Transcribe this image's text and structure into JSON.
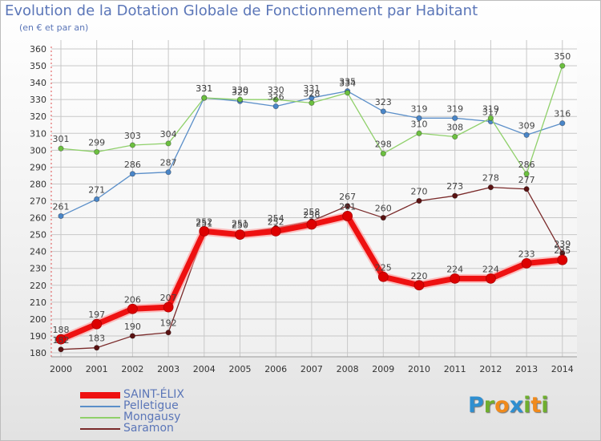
{
  "title": "Evolution de la Dotation Globale de Fonctionnement par Habitant",
  "subtitle": "(en € et par an)",
  "logo": {
    "letters": [
      "P",
      "r",
      "o",
      "x",
      "i",
      "t",
      "i"
    ],
    "colors": [
      "#2f8fd0",
      "#6fae2f",
      "#f08a1c",
      "#2f8fd0",
      "#6fae2f",
      "#f08a1c",
      "#6fae2f"
    ]
  },
  "chart_data": {
    "type": "line",
    "title": "Evolution de la Dotation Globale de Fonctionnement par Habitant",
    "ylabel": "(en € et par an)",
    "xlabel": "",
    "categories": [
      "2000",
      "2001",
      "2002",
      "2003",
      "2004",
      "2005",
      "2006",
      "2007",
      "2008",
      "2009",
      "2010",
      "2011",
      "2012",
      "2013",
      "2014"
    ],
    "ylim": [
      180,
      360
    ],
    "yticks": [
      180,
      190,
      200,
      210,
      220,
      230,
      240,
      250,
      260,
      270,
      280,
      290,
      300,
      310,
      320,
      330,
      340,
      350,
      360
    ],
    "grid": true,
    "legend_position": "bottom-left",
    "series": [
      {
        "name": "Pelletigue",
        "color": "#5b8fc9",
        "marker": "#4a86c8",
        "values": [
          261,
          271,
          286,
          287,
          331,
          329,
          326,
          331,
          335,
          323,
          319,
          319,
          317,
          309,
          316
        ],
        "labels": [
          "261",
          "271",
          "286",
          "287",
          "331",
          "329",
          "326",
          "331",
          "335",
          "323",
          "319",
          "319",
          "317",
          "309",
          "316"
        ]
      },
      {
        "name": "Mongausy",
        "color": "#8fd06a",
        "marker": "#6cc040",
        "values": [
          301,
          299,
          303,
          304,
          331,
          330,
          330,
          328,
          334,
          298,
          310,
          308,
          319,
          286,
          350
        ],
        "labels": [
          "301",
          "299",
          "303",
          "304",
          "331",
          "330",
          "330",
          "328",
          "334",
          "298",
          "310",
          "308",
          "319",
          "286",
          "350"
        ]
      },
      {
        "name": "Saramon",
        "color": "#7a2a2a",
        "marker": "#5a1212",
        "values": [
          182,
          183,
          190,
          192,
          251,
          251,
          254,
          258,
          267,
          260,
          270,
          273,
          278,
          277,
          239
        ],
        "labels": [
          "182",
          "183",
          "190",
          "192",
          "251",
          "251",
          "254",
          "258",
          "267",
          "260",
          "270",
          "273",
          "278",
          "277",
          "239"
        ]
      },
      {
        "name": "SAINT-ÉLIX",
        "color": "#ee1111",
        "marker": "#dd0000",
        "values": [
          188,
          197,
          206,
          207,
          252,
          250,
          252,
          256,
          261,
          225,
          220,
          224,
          224,
          233,
          235
        ],
        "labels": [
          "188",
          "197",
          "206",
          "207",
          "252",
          "250",
          "252",
          "256",
          "261",
          "225",
          "220",
          "224",
          "224",
          "233",
          "235"
        ]
      }
    ],
    "legend_order": [
      "SAINT-ÉLIX",
      "Pelletigue",
      "Mongausy",
      "Saramon"
    ]
  }
}
